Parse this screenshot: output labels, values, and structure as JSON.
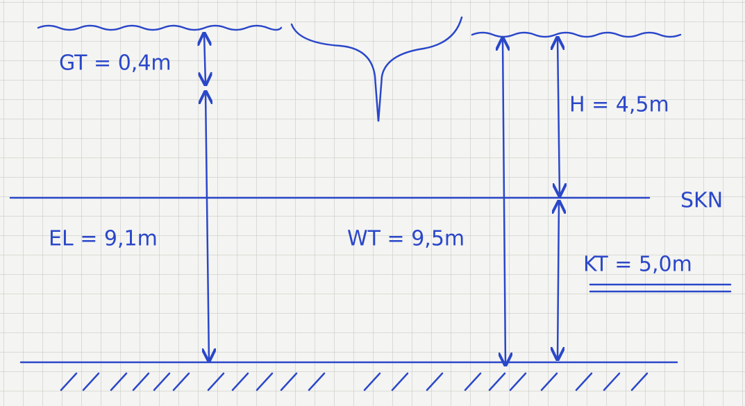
{
  "labels": {
    "gt": "GT = 0,4m",
    "h": "H = 4,5m",
    "skn": "SKN",
    "el": "EL = 9,1m",
    "wt": "WT = 9,5m",
    "kt": "KT = 5,0m"
  }
}
